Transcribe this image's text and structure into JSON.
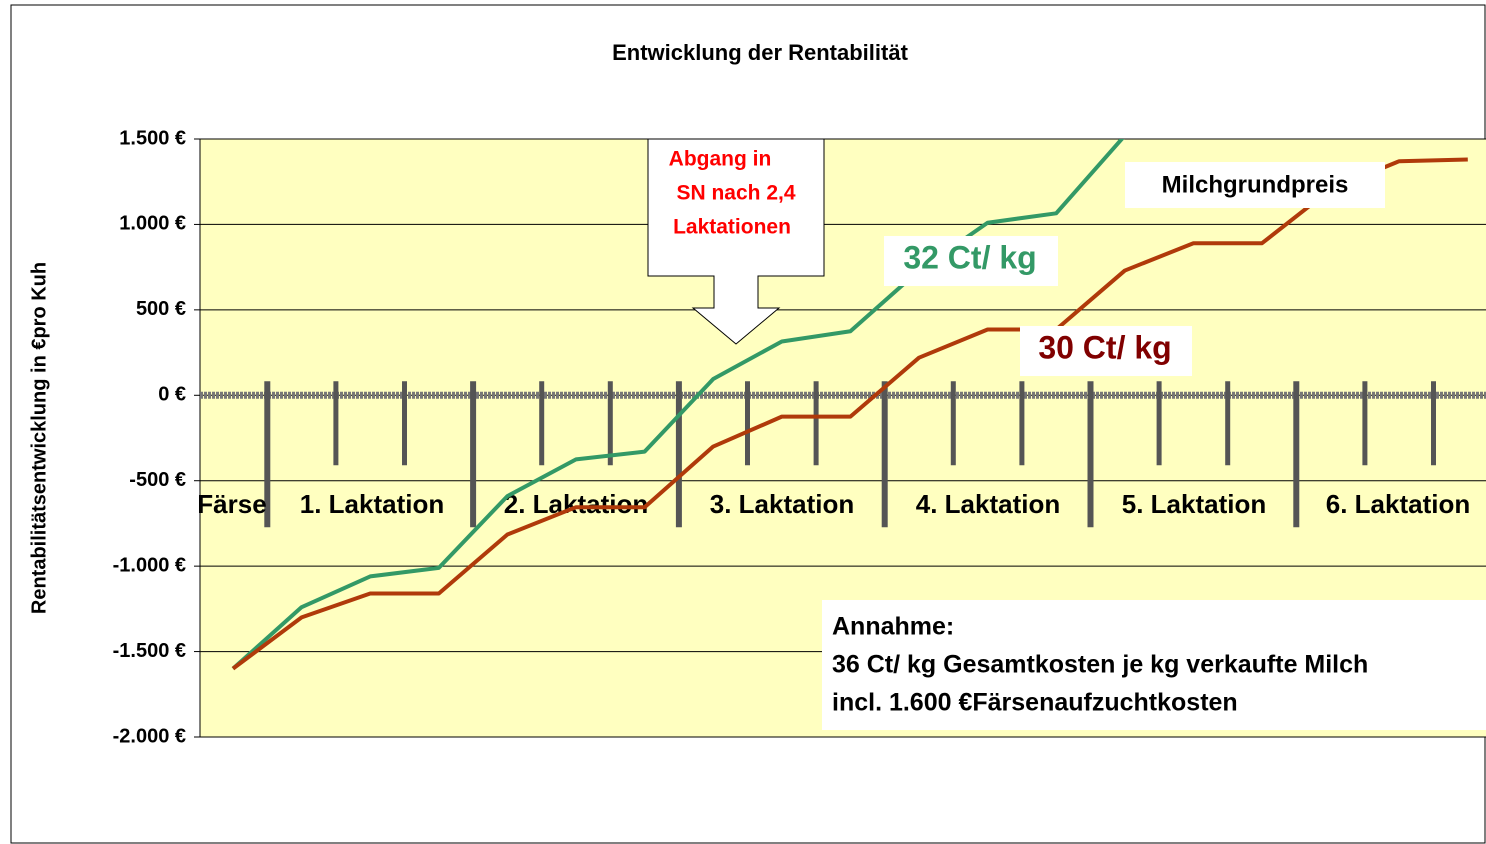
{
  "chart_data": {
    "type": "line",
    "title": "Entwicklung der Rentabilität",
    "y_label": "Rentabilitätsentwicklung in €pro Kuh",
    "categories": [
      null,
      null,
      null,
      null,
      null,
      null,
      null,
      null,
      null,
      null,
      null,
      null,
      null,
      null,
      null,
      null,
      null,
      null,
      null
    ],
    "group_labels": [
      "Färse",
      "1. Laktation",
      "2. Laktation",
      "3. Laktation",
      "4. Laktation",
      "5. Laktation",
      "6. Laktation"
    ],
    "series": [
      {
        "name": "32 Ct/ kg",
        "color": "#339966",
        "values": [
          -1600,
          -1240,
          -1060,
          -1010,
          -590,
          -375,
          -330,
          95,
          315,
          375,
          730,
          1010,
          1065,
          1520,
          null,
          null,
          null,
          null,
          null
        ]
      },
      {
        "name": "30 Ct/ kg",
        "color": "#b03a0a",
        "label_color": "#800000",
        "values": [
          -1600,
          -1300,
          -1160,
          -1160,
          -815,
          -655,
          -655,
          -300,
          -125,
          -125,
          220,
          385,
          385,
          730,
          890,
          890,
          1205,
          1370,
          1380
        ]
      }
    ],
    "ylim": [
      -2000,
      1500
    ],
    "yticks": [
      {
        "value": -2000,
        "label": "-2.000 €"
      },
      {
        "value": -1500,
        "label": "-1.500 €"
      },
      {
        "value": -1000,
        "label": "-1.000 €"
      },
      {
        "value": -500,
        "label": "-500 €"
      },
      {
        "value": 0,
        "label": "0 €"
      },
      {
        "value": 500,
        "label": "500 €"
      },
      {
        "value": 1000,
        "label": "1.000 €"
      },
      {
        "value": 1500,
        "label": "1.500 €"
      }
    ],
    "grid": true,
    "annotations": {
      "callout": [
        "Abgang in",
        "SN nach 2,4",
        "Laktationen"
      ],
      "milk_price": "Milchgrundpreis",
      "assumption": [
        "Annahme:",
        "36 Ct/ kg Gesamtkosten je kg verkaufte Milch",
        "incl. 1.600 €Färsenaufzuchtkosten"
      ]
    }
  }
}
